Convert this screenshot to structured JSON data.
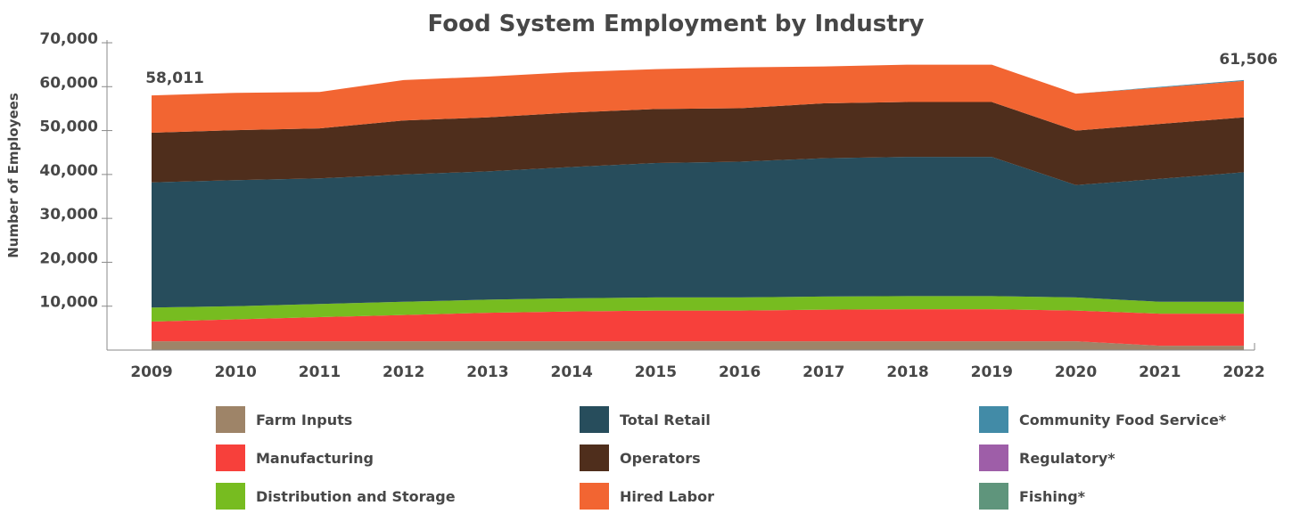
{
  "chart_data": {
    "type": "area",
    "stacked": true,
    "title": "Food System Employment by Industry",
    "ylabel": "Number of Employees",
    "xlabel": "",
    "x": [
      "2009",
      "2010",
      "2011",
      "2012",
      "2013",
      "2014",
      "2015",
      "2016",
      "2017",
      "2018",
      "2019",
      "2020",
      "2021",
      "2022"
    ],
    "ylim": [
      0,
      70000
    ],
    "yticks": [
      10000,
      20000,
      30000,
      40000,
      50000,
      60000,
      70000
    ],
    "ytick_labels": [
      "10,000",
      "20,000",
      "30,000",
      "40,000",
      "50,000",
      "60,000",
      "70,000"
    ],
    "grid": false,
    "legend_position": "bottom",
    "series": [
      {
        "name": "Farm Inputs",
        "color": "#9e8468",
        "values": [
          2000,
          2000,
          2000,
          2000,
          2000,
          2000,
          2000,
          2000,
          2000,
          2000,
          2000,
          2000,
          1000,
          1000
        ]
      },
      {
        "name": "Manufacturing",
        "color": "#f7403b",
        "values": [
          4500,
          5000,
          5500,
          6000,
          6500,
          6800,
          7000,
          7000,
          7200,
          7300,
          7300,
          7000,
          7300,
          7300
        ]
      },
      {
        "name": "Distribution and Storage",
        "color": "#77bc20",
        "values": [
          3200,
          3000,
          3000,
          3000,
          3000,
          3000,
          3000,
          3000,
          3000,
          3000,
          3000,
          3000,
          2700,
          2700
        ]
      },
      {
        "name": "Total Retail",
        "color": "#274d5c",
        "values": [
          28500,
          28700,
          28600,
          29000,
          29200,
          29900,
          30600,
          30900,
          31500,
          31700,
          31700,
          25600,
          28000,
          29500
        ]
      },
      {
        "name": "Operators",
        "color": "#4f2e1c",
        "values": [
          11300,
          11400,
          11400,
          12300,
          12300,
          12400,
          12300,
          12200,
          12500,
          12500,
          12500,
          12400,
          12500,
          12500
        ]
      },
      {
        "name": "Hired Labor",
        "color": "#f26532",
        "values": [
          8500,
          8500,
          8300,
          9200,
          9300,
          9200,
          9100,
          9300,
          8400,
          8500,
          8500,
          8400,
          8300,
          8300
        ]
      },
      {
        "name": "Community Food Service*",
        "color": "#428ba7",
        "values": [
          0,
          0,
          0,
          0,
          0,
          0,
          0,
          0,
          0,
          0,
          0,
          0,
          150,
          200
        ]
      },
      {
        "name": "Regulatory*",
        "color": "#9e5ea8",
        "values": [
          0,
          0,
          0,
          0,
          0,
          0,
          0,
          0,
          0,
          0,
          0,
          0,
          0,
          0
        ]
      },
      {
        "name": "Fishing*",
        "color": "#5f957c",
        "values": [
          0,
          0,
          0,
          0,
          0,
          0,
          0,
          0,
          0,
          0,
          0,
          0,
          0,
          0
        ]
      }
    ],
    "annotations": [
      {
        "x": "2009",
        "label": "58,011"
      },
      {
        "x": "2022",
        "label": "61,506"
      }
    ],
    "totals": {
      "2009": 58011,
      "2022": 61506
    }
  }
}
